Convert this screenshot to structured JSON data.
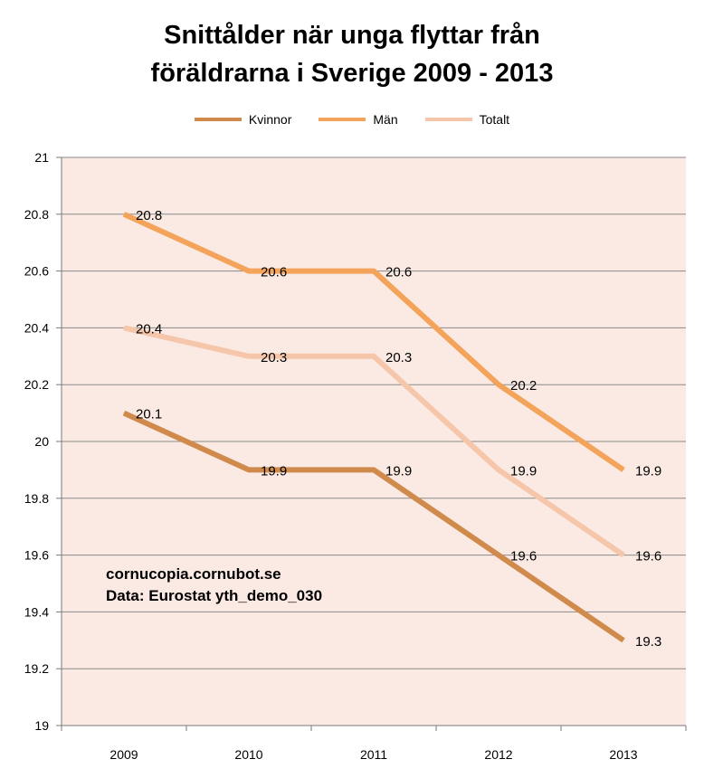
{
  "chart_data": {
    "type": "line",
    "title_line1": "Snittålder när unga flyttar från",
    "title_line2": "föräldrarna i Sverige 2009 - 2013",
    "categories": [
      "2009",
      "2010",
      "2011",
      "2012",
      "2013"
    ],
    "series": [
      {
        "name": "Kvinnor",
        "color": "#d08a4c",
        "values": [
          20.1,
          19.9,
          19.9,
          19.6,
          19.3
        ]
      },
      {
        "name": "Män",
        "color": "#f3a35a",
        "values": [
          20.8,
          20.6,
          20.6,
          20.2,
          19.9
        ]
      },
      {
        "name": "Totalt",
        "color": "#f6c6aa",
        "values": [
          20.4,
          20.3,
          20.3,
          19.9,
          19.6
        ]
      }
    ],
    "ylim": [
      19,
      21
    ],
    "yticks": [
      19,
      19.2,
      19.4,
      19.6,
      19.8,
      20,
      20.2,
      20.4,
      20.6,
      20.8,
      21
    ],
    "ytick_labels": [
      "19",
      "19.2",
      "19.4",
      "19.6",
      "19.8",
      "20",
      "20.2",
      "20.4",
      "20.6",
      "20.8",
      "21"
    ],
    "grid": true,
    "legend_position": "top",
    "plot_background": "#fbeae4",
    "grid_color": "#8a8a8a",
    "annotations": [
      "cornucopia.cornubot.se",
      "Data: Eurostat yth_demo_030"
    ]
  }
}
